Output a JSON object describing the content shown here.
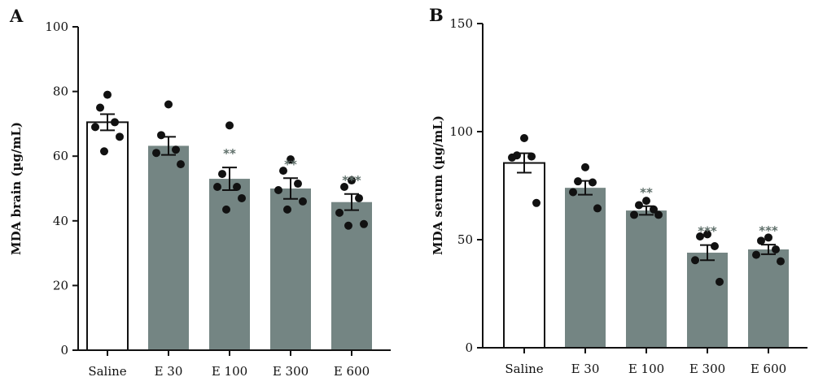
{
  "chart_data": [
    {
      "type": "bar",
      "panel": "A",
      "ylabel": "MDA brain (µg/mL)",
      "ylim": [
        0,
        100
      ],
      "yticks": [
        0,
        20,
        40,
        60,
        80,
        100
      ],
      "categories": [
        "Saline",
        "E 30",
        "E 100",
        "E 300",
        "E 600"
      ],
      "values": [
        70.5,
        63.2,
        53.0,
        50.0,
        45.8
      ],
      "sem": [
        2.5,
        2.8,
        3.5,
        3.2,
        2.5
      ],
      "significance": [
        "",
        "",
        "**",
        "**",
        "***"
      ],
      "points": [
        [
          79,
          75,
          70.5,
          69,
          66,
          61.5
        ],
        [
          76,
          66.5,
          62,
          61,
          57.5
        ],
        [
          69.5,
          54.5,
          50.5,
          50.5,
          47,
          43.5
        ],
        [
          59,
          55.5,
          51.5,
          49.5,
          46,
          43.5
        ],
        [
          52.5,
          50.5,
          47,
          42.5,
          39,
          38.5
        ]
      ],
      "bar_colors": [
        "#ffffff",
        "#748583",
        "#748583",
        "#748583",
        "#748583"
      ]
    },
    {
      "type": "bar",
      "panel": "B",
      "ylabel": "MDA serum (µg/mL)",
      "ylim": [
        0,
        150
      ],
      "yticks": [
        0,
        50,
        100,
        150
      ],
      "categories": [
        "Saline",
        "E 30",
        "E 100",
        "E 300",
        "E 600"
      ],
      "values": [
        85.5,
        74.0,
        63.5,
        44.0,
        45.5
      ],
      "sem": [
        4.5,
        3.2,
        2.0,
        3.5,
        2.2
      ],
      "significance": [
        "",
        "",
        "**",
        "***",
        "***"
      ],
      "points": [
        [
          97,
          89,
          88.5,
          88,
          67
        ],
        [
          83.5,
          77,
          76.5,
          72,
          64.5
        ],
        [
          68,
          66,
          64,
          61.5,
          61.5
        ],
        [
          52.5,
          51.5,
          47,
          40.5,
          30.5
        ],
        [
          51,
          49.5,
          45.5,
          43,
          40
        ]
      ],
      "bar_colors": [
        "#ffffff",
        "#748583",
        "#748583",
        "#748583",
        "#748583"
      ]
    }
  ]
}
